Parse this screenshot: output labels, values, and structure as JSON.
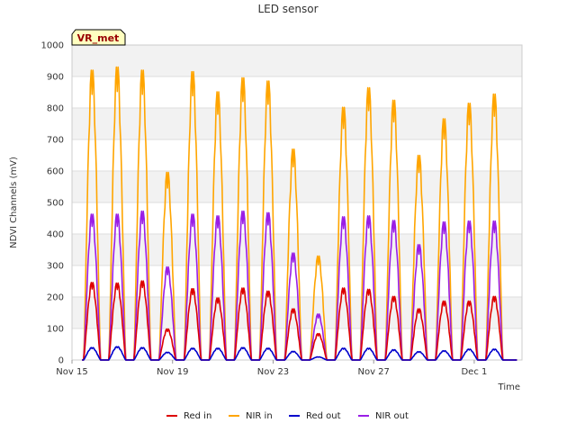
{
  "chart_data": {
    "type": "line",
    "title": "LED sensor",
    "xlabel": "Time",
    "ylabel": "NDVI Channels (mV)",
    "ylim": [
      0,
      1000
    ],
    "yticks": [
      0,
      100,
      200,
      300,
      400,
      500,
      600,
      700,
      800,
      900,
      1000
    ],
    "xlim": [
      0,
      17.9
    ],
    "xticks": [
      {
        "label": "Nov 15",
        "day": 0
      },
      {
        "label": "Nov 19",
        "day": 4
      },
      {
        "label": "Nov 23",
        "day": 8
      },
      {
        "label": "Nov 27",
        "day": 12
      },
      {
        "label": "Dec 1",
        "day": 16
      }
    ],
    "grid": true,
    "legend_position": "bottom",
    "badge": "VR_met",
    "daily_peaks": {
      "days": [
        0.8,
        1.8,
        2.8,
        3.8,
        4.8,
        5.8,
        6.8,
        7.8,
        8.8,
        9.8,
        10.8,
        11.8,
        12.8,
        13.8,
        14.8,
        15.8,
        16.8
      ],
      "series": [
        {
          "name": "Red in",
          "color": "#dd0000",
          "values": [
            250,
            248,
            255,
            100,
            230,
            200,
            232,
            222,
            165,
            85,
            232,
            228,
            205,
            165,
            190,
            190,
            205
          ]
        },
        {
          "name": "NIR in",
          "color": "#ffa500",
          "values": [
            935,
            945,
            935,
            605,
            930,
            865,
            910,
            900,
            680,
            335,
            815,
            878,
            838,
            660,
            778,
            828,
            858
          ]
        },
        {
          "name": "Red out",
          "color": "#0000cc",
          "values": [
            40,
            43,
            40,
            25,
            38,
            38,
            40,
            38,
            28,
            10,
            38,
            38,
            33,
            27,
            30,
            35,
            35
          ]
        },
        {
          "name": "NIR out",
          "color": "#9a1ee6",
          "values": [
            470,
            470,
            480,
            300,
            470,
            465,
            480,
            475,
            345,
            148,
            462,
            465,
            450,
            372,
            445,
            448,
            448
          ]
        }
      ]
    }
  }
}
